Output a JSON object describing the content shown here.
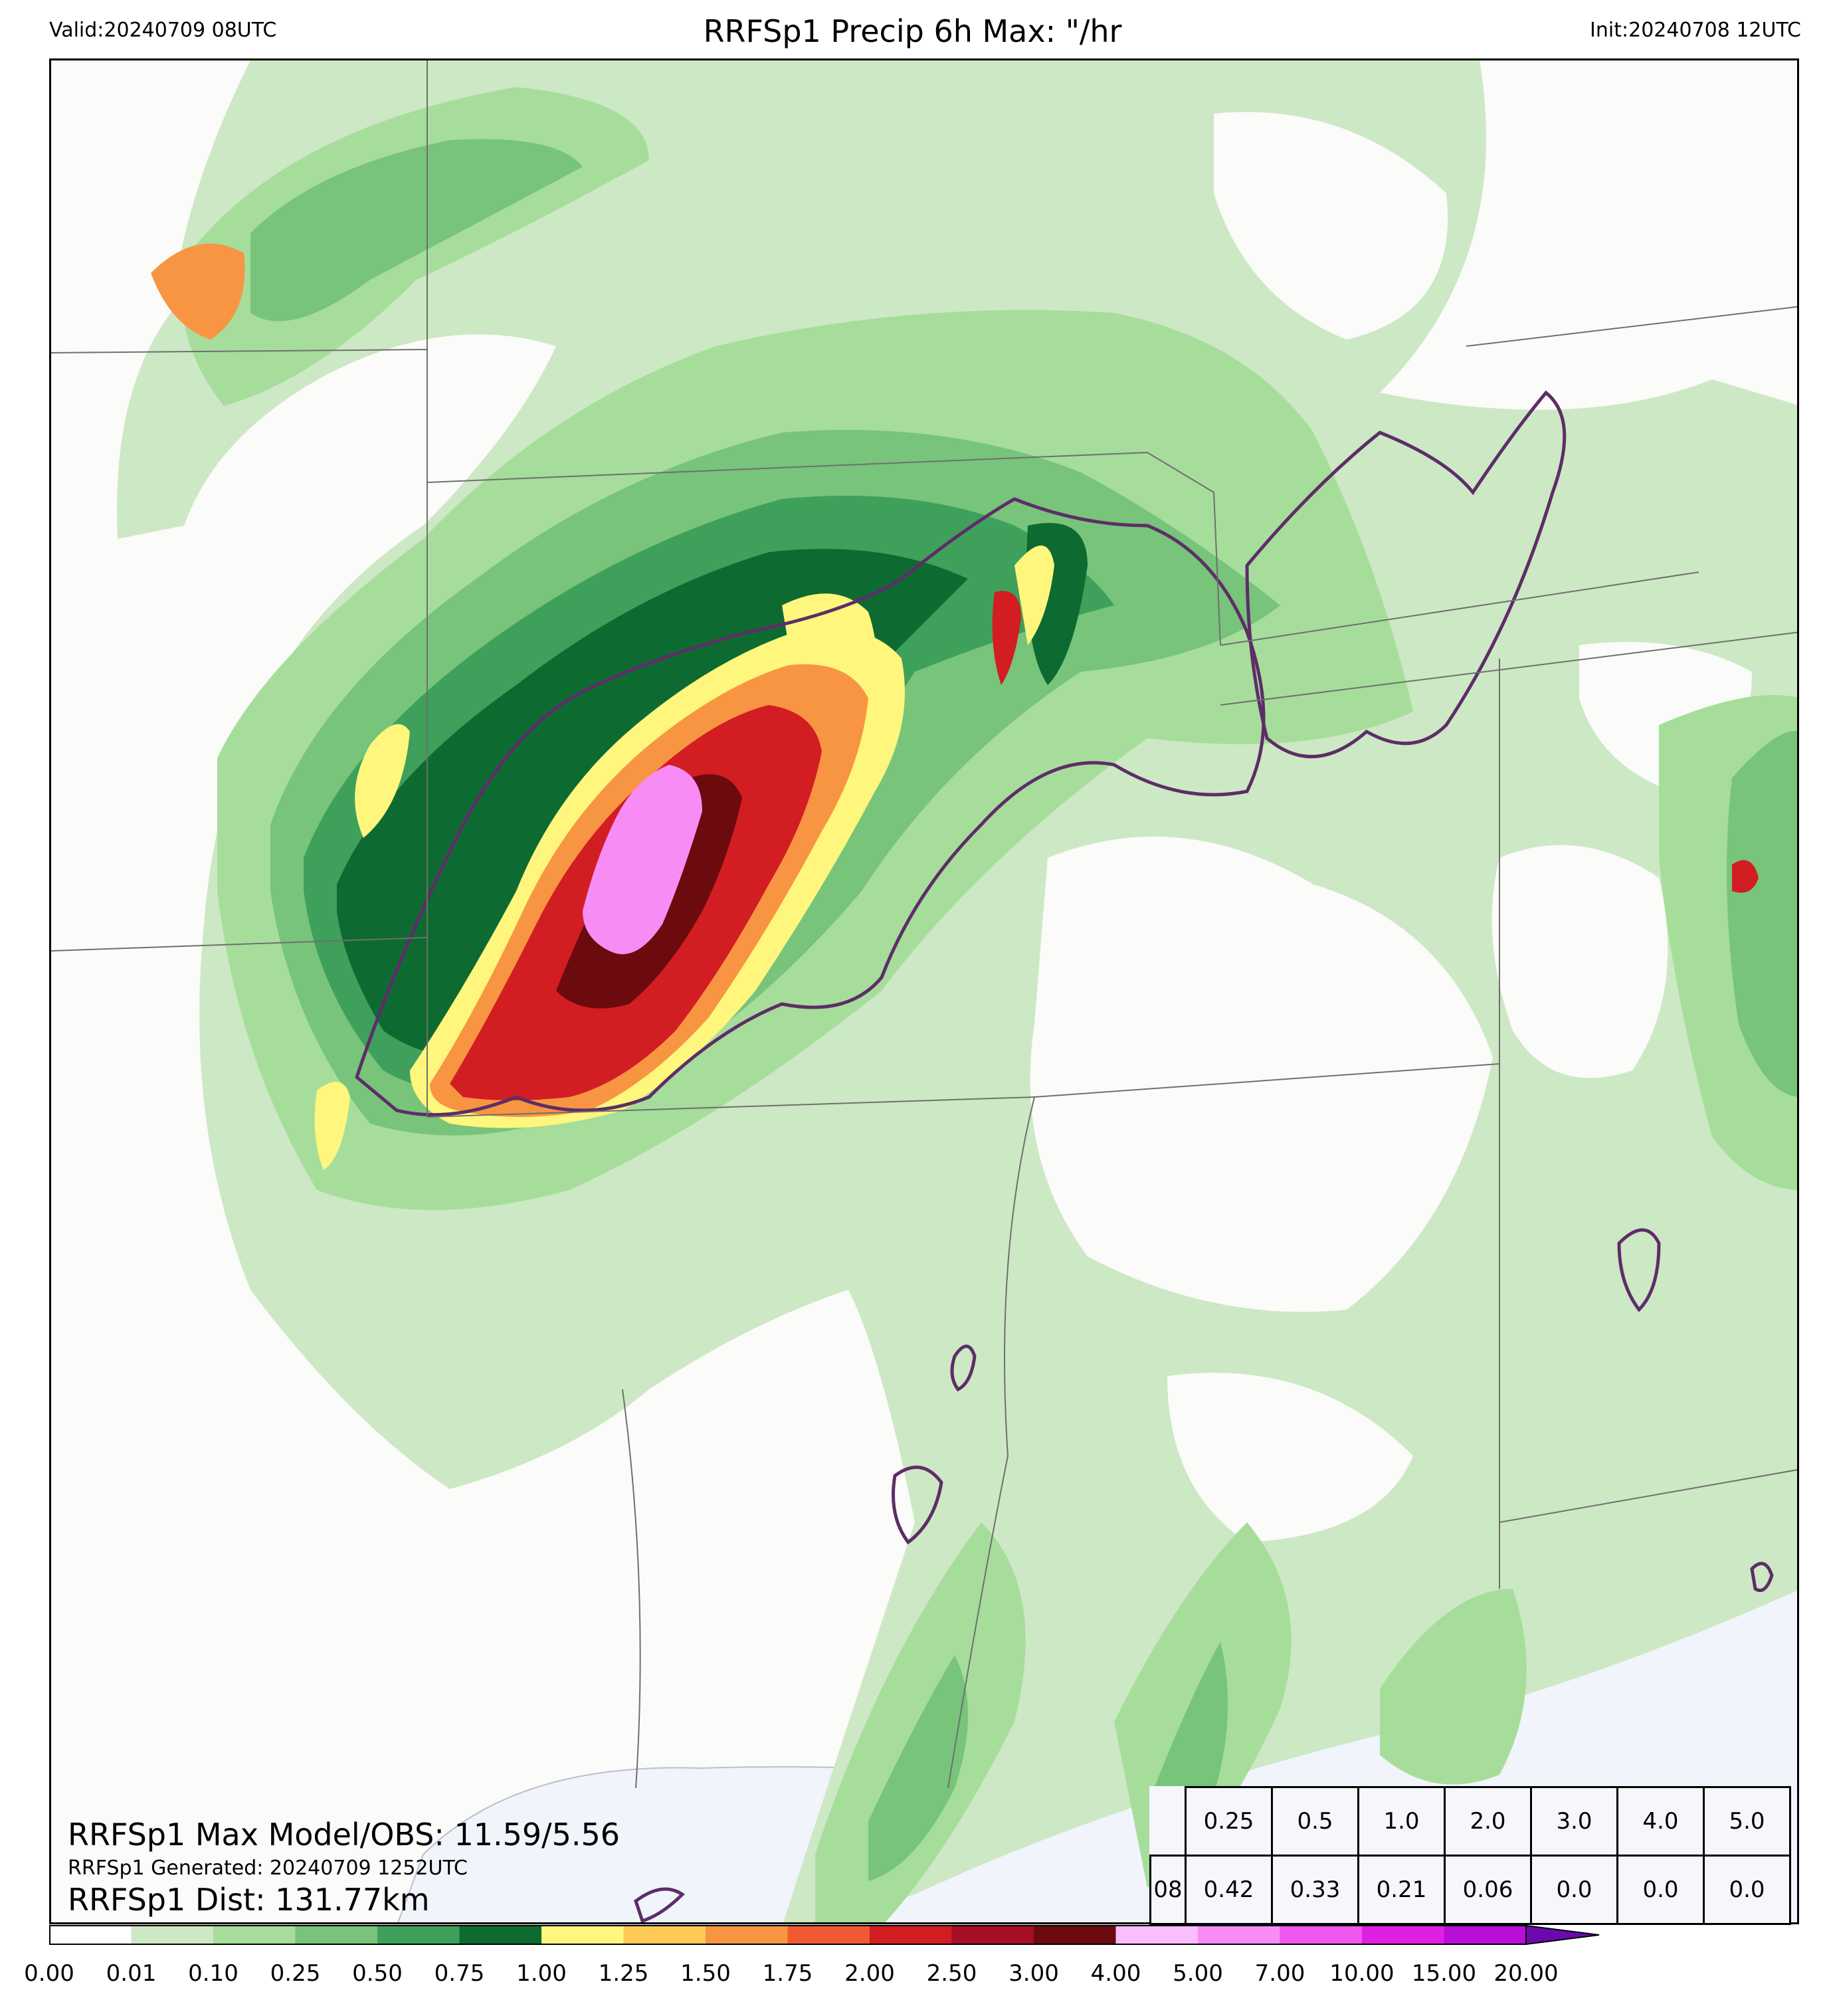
{
  "header": {
    "valid": "Valid:20240709 08UTC",
    "title": "RRFSp1 Precip 6h Max: \"/hr",
    "init": "Init:20240708 12UTC"
  },
  "stats": {
    "max_line": "RRFSp1 Max Model/OBS: 11.59/5.56",
    "generated_line": "RRFSp1 Generated: 20240709 1252UTC",
    "dist_line": "RRFSp1 Dist: 131.77km"
  },
  "threshold_table": {
    "thresholds": [
      "0.25",
      "0.5",
      "1.0",
      "2.0",
      "3.0",
      "4.0",
      "5.0"
    ],
    "row_label": "08",
    "values": [
      "0.42",
      "0.33",
      "0.21",
      "0.06",
      "0.0",
      "0.0",
      "0.0"
    ]
  },
  "colorbar": {
    "ticks": [
      "0.00",
      "0.01",
      "0.10",
      "0.25",
      "0.50",
      "0.75",
      "1.00",
      "1.25",
      "1.50",
      "1.75",
      "2.00",
      "2.50",
      "3.00",
      "4.00",
      "5.00",
      "7.00",
      "10.00",
      "15.00",
      "20.00"
    ],
    "colors": [
      "#ffffff",
      "#cde8c4",
      "#a6dd9b",
      "#77c47a",
      "#3ea05b",
      "#0d6b31",
      "#fff67e",
      "#fdcb55",
      "#f89542",
      "#f05a33",
      "#d21d22",
      "#a50f27",
      "#6b0b0e",
      "#fbbdfb",
      "#f78cf5",
      "#ef56ed",
      "#df20e2",
      "#b80ed8",
      "#8e0cc7"
    ],
    "extend_color": "#6c08b0"
  },
  "legend_colors": {
    "contour_obs": "#5e2d68",
    "water": "#f1f4fa",
    "background": "#fbfbfa"
  }
}
